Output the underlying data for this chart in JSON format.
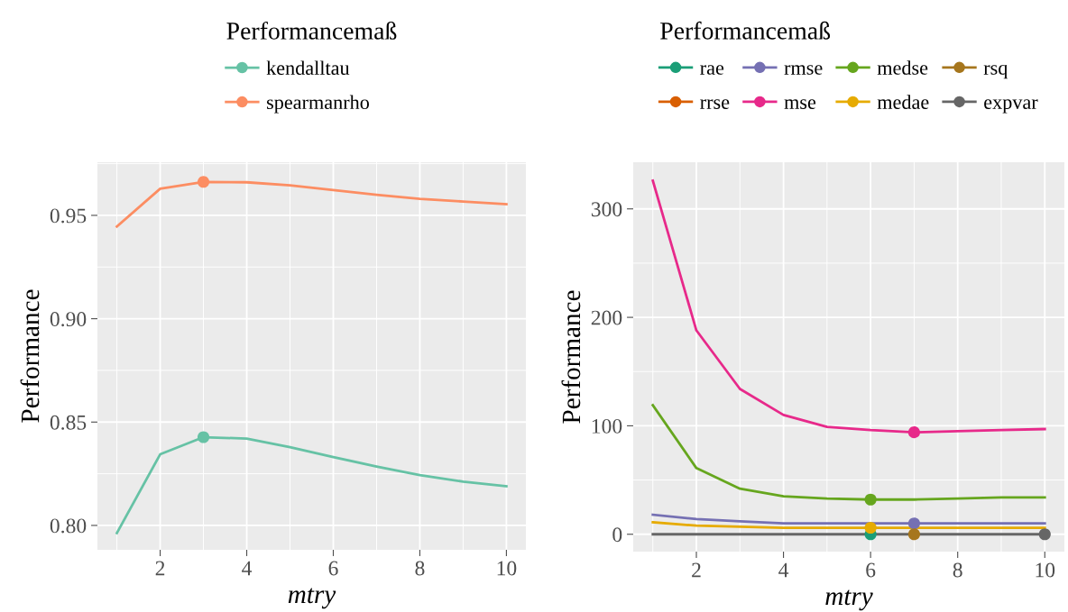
{
  "chart_data": [
    {
      "type": "line",
      "xlabel": "mtry",
      "ylabel": "Performance",
      "legend_title": "Performancemaß",
      "legend": "top",
      "grid": true,
      "x": [
        1,
        2,
        3,
        4,
        5,
        6,
        7,
        8,
        9,
        10
      ],
      "xlim": [
        0.55,
        10.45
      ],
      "xticks": [
        2,
        4,
        6,
        8,
        10
      ],
      "ylim": [
        0.7882,
        0.9757
      ],
      "yticks": [
        {
          "value": 0.8,
          "label": "0.80"
        },
        {
          "value": 0.85,
          "label": "0.85"
        },
        {
          "value": 0.9,
          "label": "0.90"
        },
        {
          "value": 0.95,
          "label": "0.95"
        }
      ],
      "series": [
        {
          "name": "kendalltau",
          "color": "#66c2a5",
          "values": [
            0.7963,
            0.8344,
            0.8427,
            0.842,
            0.8379,
            0.8331,
            0.8285,
            0.8243,
            0.8212,
            0.819
          ]
        },
        {
          "name": "spearmanrho",
          "color": "#fc8d62",
          "values": [
            0.9446,
            0.9629,
            0.9662,
            0.966,
            0.9645,
            0.9622,
            0.9599,
            0.958,
            0.9567,
            0.9554
          ]
        },
        {
          "type": "scatter",
          "color": "#66c2a5",
          "x": [
            3
          ],
          "values": [
            0.8427
          ]
        },
        {
          "type": "scatter",
          "color": "#fc8d62",
          "x": [
            3
          ],
          "values": [
            0.9662
          ]
        }
      ]
    },
    {
      "type": "line",
      "xlabel": "mtry",
      "ylabel": "Performance",
      "legend_title": "Performancemaß",
      "legend": "top",
      "grid": true,
      "x": [
        1,
        2,
        3,
        4,
        5,
        6,
        7,
        8,
        9,
        10
      ],
      "xlim": [
        0.55,
        10.45
      ],
      "xticks": [
        2,
        4,
        6,
        8,
        10
      ],
      "ylim": [
        -16,
        343
      ],
      "yticks": [
        0,
        100,
        200,
        300
      ],
      "series": [
        {
          "name": "rae",
          "color": "#1b9e77",
          "values": [
            null,
            null,
            null,
            null,
            null,
            null,
            null,
            null,
            null,
            null
          ]
        },
        {
          "name": "rrse",
          "color": "#d95f02",
          "values": [
            null,
            null,
            null,
            null,
            null,
            null,
            null,
            null,
            null,
            null
          ]
        },
        {
          "name": "rmse",
          "color": "#7570b3",
          "values": [
            18,
            14,
            12,
            10,
            10,
            10,
            10,
            10,
            10,
            10
          ]
        },
        {
          "name": "mse",
          "color": "#e7298a",
          "values": [
            326,
            188,
            134,
            110,
            99,
            96,
            94,
            95,
            96,
            97
          ]
        },
        {
          "name": "medse",
          "color": "#66a61e",
          "values": [
            119,
            61,
            42,
            35,
            33,
            32,
            32,
            33,
            34,
            34
          ]
        },
        {
          "name": "medae",
          "color": "#e6ab02",
          "values": [
            11,
            8,
            7,
            6,
            6,
            6,
            6,
            6,
            6,
            6
          ]
        },
        {
          "name": "rsq",
          "color": "#a6761d",
          "values": [
            null,
            null,
            null,
            null,
            null,
            null,
            null,
            null,
            null,
            null
          ]
        },
        {
          "name": "expvar",
          "color": "#666666",
          "values": [
            0,
            0,
            0,
            0,
            0,
            0,
            0,
            0,
            0,
            0
          ]
        },
        {
          "type": "scatter",
          "color": "#1b9e77",
          "x": [
            6
          ],
          "values": [
            0
          ]
        },
        {
          "type": "scatter",
          "color": "#7570b3",
          "x": [
            7
          ],
          "values": [
            10
          ]
        },
        {
          "type": "scatter",
          "color": "#e7298a",
          "x": [
            7
          ],
          "values": [
            94
          ]
        },
        {
          "type": "scatter",
          "color": "#66a61e",
          "x": [
            6
          ],
          "values": [
            32
          ]
        },
        {
          "type": "scatter",
          "color": "#e6ab02",
          "x": [
            6
          ],
          "values": [
            6
          ]
        },
        {
          "type": "scatter",
          "color": "#a6761d",
          "x": [
            7
          ],
          "values": [
            0
          ]
        },
        {
          "type": "scatter",
          "color": "#666666",
          "x": [
            10
          ],
          "values": [
            0
          ]
        }
      ]
    }
  ]
}
